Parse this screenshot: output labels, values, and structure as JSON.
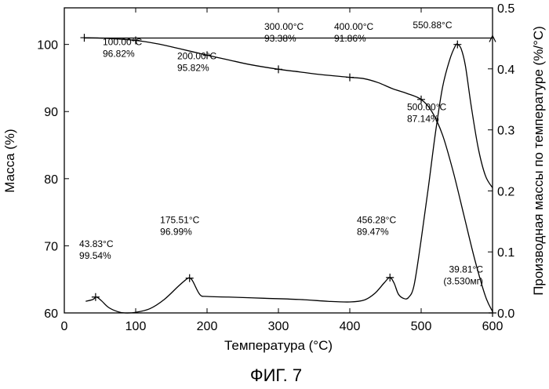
{
  "caption": "ФИГ. 7",
  "chart_data": {
    "type": "line",
    "xlabel": "Температура (°C)",
    "ylabel_left": "Масса (%)",
    "ylabel_right": "Производная массы по температуре (%/°C)",
    "xlim": [
      0,
      600
    ],
    "ylim_left": [
      60,
      105.45
    ],
    "ylim_right": [
      0,
      0.5
    ],
    "xticks": [
      "0",
      "100",
      "200",
      "300",
      "400",
      "500",
      "600"
    ],
    "yticks_left": [
      "60",
      "70",
      "80",
      "90",
      "100"
    ],
    "yticks_right": [
      "0.0",
      "0.1",
      "0.2",
      "0.3",
      "0.4",
      "0.5"
    ],
    "series": [
      {
        "axis": "left",
        "x": [
          28,
          60,
          100,
          130,
          160,
          200,
          230,
          260,
          300,
          330,
          360,
          400,
          420,
          440,
          460,
          480,
          500,
          515,
          530,
          545,
          560,
          575,
          590,
          600
        ],
        "y": [
          101.0,
          100.9,
          100.6,
          100.1,
          99.4,
          98.4,
          97.7,
          97.0,
          96.3,
          95.9,
          95.5,
          95.1,
          94.9,
          94.3,
          93.4,
          92.7,
          91.8,
          90.0,
          86.5,
          81.0,
          74.5,
          68.0,
          62.5,
          60.2
        ]
      },
      {
        "axis": "right",
        "x": [
          30,
          40,
          45,
          52,
          62,
          75,
          85,
          100,
          120,
          140,
          160,
          172,
          176,
          180,
          190,
          200,
          230,
          280,
          330,
          370,
          400,
          420,
          435,
          448,
          456,
          462,
          468,
          475,
          482,
          490,
          500,
          510,
          520,
          530,
          540,
          548,
          551,
          556,
          562,
          570,
          580,
          590,
          600
        ],
        "y": [
          0.019,
          0.022,
          0.026,
          0.02,
          0.009,
          0.002,
          0.0,
          0.001,
          0.007,
          0.022,
          0.044,
          0.056,
          0.057,
          0.052,
          0.03,
          0.027,
          0.026,
          0.024,
          0.022,
          0.019,
          0.018,
          0.021,
          0.032,
          0.049,
          0.058,
          0.049,
          0.031,
          0.024,
          0.025,
          0.045,
          0.12,
          0.205,
          0.295,
          0.37,
          0.415,
          0.438,
          0.44,
          0.433,
          0.405,
          0.34,
          0.27,
          0.225,
          0.205
        ]
      },
      {
        "axis": "left",
        "x": [
          28,
          600
        ],
        "y": [
          100.95,
          100.95
        ]
      }
    ],
    "markers": [
      {
        "axis": "left",
        "x": 28,
        "y": 101.0
      },
      {
        "axis": "left",
        "x": 100,
        "y": 100.6
      },
      {
        "axis": "left",
        "x": 200,
        "y": 98.4
      },
      {
        "axis": "left",
        "x": 300,
        "y": 96.3
      },
      {
        "axis": "left",
        "x": 400,
        "y": 95.1
      },
      {
        "axis": "left",
        "x": 500,
        "y": 91.8
      },
      {
        "axis": "right",
        "x": 43.83,
        "y": 0.026
      },
      {
        "axis": "right",
        "x": 175.51,
        "y": 0.057
      },
      {
        "axis": "right",
        "x": 456.28,
        "y": 0.058
      },
      {
        "axis": "right",
        "x": 550.88,
        "y": 0.44
      },
      {
        "axis": "right",
        "x": 600,
        "y": 0.0
      }
    ],
    "annotations": [
      {
        "lines": [
          "100.00°C",
          "96.82%"
        ],
        "at": [
          100,
          99.9
        ],
        "align": "start",
        "dx": -42
      },
      {
        "lines": [
          "200.00°C",
          "95.82%"
        ],
        "at": [
          200,
          97.8
        ],
        "align": "start",
        "dx": -38
      },
      {
        "lines": [
          "300.00°C",
          "93.38%"
        ],
        "at": [
          300,
          102.2
        ],
        "align": "start",
        "dx": -18
      },
      {
        "lines": [
          "400.00°C",
          "91.86%"
        ],
        "at": [
          400,
          102.2
        ],
        "align": "start",
        "dx": -20
      },
      {
        "lines": [
          "550.88°C"
        ],
        "at": [
          550,
          102.4
        ],
        "align": "end",
        "dx": -6
      },
      {
        "lines": [
          "500.00°C",
          "87.14%"
        ],
        "at": [
          500,
          90.2
        ],
        "align": "start",
        "dx": -18
      },
      {
        "lines": [
          "43.83°C",
          "99.54%"
        ],
        "at": [
          44,
          69.8
        ],
        "align": "start",
        "dx": -21
      },
      {
        "lines": [
          "175.51°C",
          "96.99%"
        ],
        "at": [
          176,
          73.4
        ],
        "align": "start",
        "dx": -38
      },
      {
        "lines": [
          "456.28°C",
          "89.47%"
        ],
        "at": [
          456,
          73.4
        ],
        "align": "start",
        "dx": -42
      },
      {
        "lines": [
          "39.81°C",
          "(3.530мг)"
        ],
        "at": [
          600,
          66.0
        ],
        "align": "end",
        "dx": -12
      }
    ]
  }
}
